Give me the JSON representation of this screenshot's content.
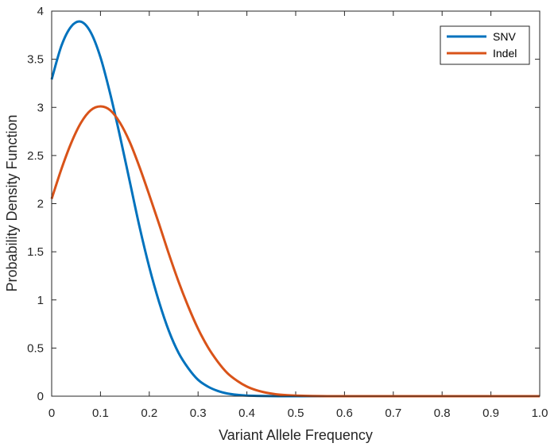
{
  "chart_data": {
    "type": "line",
    "title": "",
    "xlabel": "Variant Allele Frequency",
    "ylabel": "Probability Density Function",
    "xlim": [
      0,
      1.0
    ],
    "ylim": [
      0,
      4
    ],
    "xticks": [
      "0",
      "0.1",
      "0.2",
      "0.3",
      "0.4",
      "0.5",
      "0.6",
      "0.7",
      "0.8",
      "0.9",
      "1.0"
    ],
    "yticks": [
      "0",
      "0.5",
      "1",
      "1.5",
      "2",
      "2.5",
      "3",
      "3.5",
      "4"
    ],
    "grid": false,
    "legend_position": "top-right",
    "series": [
      {
        "name": "SNV",
        "color": "#0072BD",
        "x": [
          0,
          0.02,
          0.04,
          0.06,
          0.08,
          0.1,
          0.12,
          0.14,
          0.16,
          0.18,
          0.2,
          0.22,
          0.24,
          0.26,
          0.28,
          0.3,
          0.32,
          0.34,
          0.36,
          0.38,
          0.4,
          0.45,
          0.5,
          0.6,
          0.8,
          1.0
        ],
        "y": [
          3.29,
          3.64,
          3.84,
          3.89,
          3.78,
          3.52,
          3.14,
          2.7,
          2.23,
          1.76,
          1.34,
          0.98,
          0.68,
          0.45,
          0.29,
          0.17,
          0.1,
          0.055,
          0.028,
          0.014,
          0.006,
          0.001,
          0.0001,
          0,
          0,
          0
        ]
      },
      {
        "name": "Indel",
        "color": "#D95319",
        "x": [
          0,
          0.02,
          0.04,
          0.06,
          0.08,
          0.1,
          0.12,
          0.14,
          0.16,
          0.18,
          0.2,
          0.22,
          0.24,
          0.26,
          0.28,
          0.3,
          0.32,
          0.34,
          0.36,
          0.38,
          0.4,
          0.42,
          0.44,
          0.46,
          0.48,
          0.5,
          0.55,
          0.6,
          0.7,
          0.8,
          1.0
        ],
        "y": [
          2.05,
          2.36,
          2.63,
          2.84,
          2.97,
          3.01,
          2.97,
          2.84,
          2.64,
          2.38,
          2.09,
          1.79,
          1.48,
          1.19,
          0.93,
          0.7,
          0.51,
          0.36,
          0.24,
          0.16,
          0.1,
          0.061,
          0.036,
          0.02,
          0.011,
          0.0057,
          0.0009,
          0.0001,
          0,
          0,
          0
        ]
      }
    ]
  }
}
